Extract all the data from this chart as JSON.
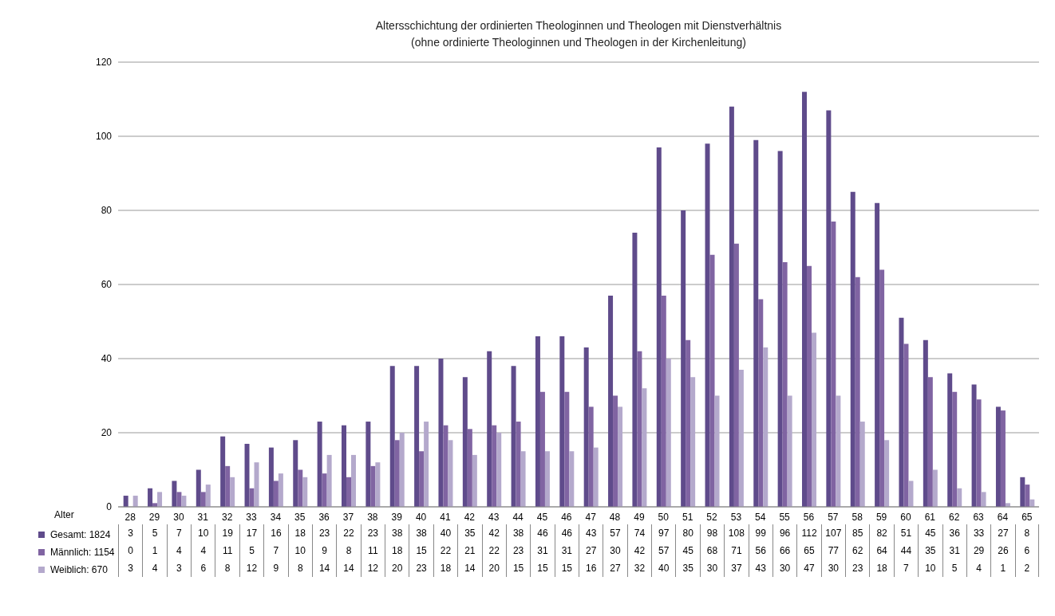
{
  "chart_data": {
    "type": "bar",
    "title": "Altersschichtung der ordinierten Theologinnen und Theologen mit Dienstverhältnis",
    "subtitle": "(ohne ordinierte Theologinnen und Theologen in der Kirchenleitung)",
    "xlabel": "Alter",
    "categories": [
      "28",
      "29",
      "30",
      "31",
      "32",
      "33",
      "34",
      "35",
      "36",
      "37",
      "38",
      "39",
      "40",
      "41",
      "42",
      "43",
      "44",
      "45",
      "46",
      "47",
      "48",
      "49",
      "50",
      "51",
      "52",
      "53",
      "54",
      "55",
      "56",
      "57",
      "58",
      "59",
      "60",
      "61",
      "62",
      "63",
      "64",
      "65"
    ],
    "series": [
      {
        "name": "Gesamt: 1824",
        "color": "#5f4b8b",
        "values": [
          3,
          5,
          7,
          10,
          19,
          17,
          16,
          18,
          23,
          22,
          23,
          38,
          38,
          40,
          35,
          42,
          38,
          46,
          46,
          43,
          57,
          74,
          97,
          80,
          98,
          108,
          99,
          96,
          112,
          107,
          85,
          82,
          51,
          45,
          36,
          33,
          27,
          8
        ]
      },
      {
        "name": "Männlich: 1154",
        "color": "#8064a2",
        "values": [
          0,
          1,
          4,
          4,
          11,
          5,
          7,
          10,
          9,
          8,
          11,
          18,
          15,
          22,
          21,
          22,
          23,
          31,
          31,
          27,
          30,
          42,
          57,
          45,
          68,
          71,
          56,
          66,
          65,
          77,
          62,
          64,
          44,
          35,
          31,
          29,
          26,
          6
        ]
      },
      {
        "name": "Weiblich: 670",
        "color": "#b4a9cc",
        "values": [
          3,
          4,
          3,
          6,
          8,
          12,
          9,
          8,
          14,
          14,
          12,
          20,
          23,
          18,
          14,
          20,
          15,
          15,
          15,
          16,
          27,
          32,
          40,
          35,
          30,
          37,
          43,
          30,
          47,
          30,
          23,
          18,
          7,
          10,
          5,
          4,
          1,
          2
        ]
      }
    ],
    "ylim": [
      0,
      120
    ],
    "yticks": [
      0,
      20,
      40,
      60,
      80,
      100,
      120
    ],
    "grid": "y",
    "legend": "bottom",
    "data_labels": true
  }
}
